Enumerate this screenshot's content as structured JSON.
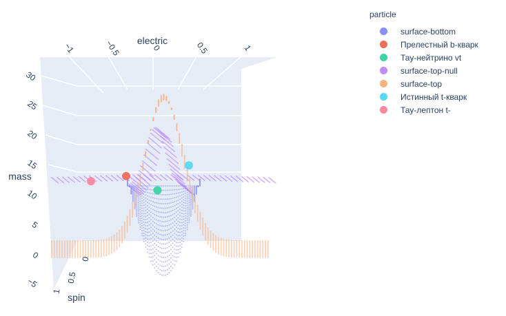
{
  "chart_data": {
    "type": "scatter",
    "mode": "3d",
    "axes": {
      "x": {
        "title": "electric",
        "range": [
          -1,
          1
        ],
        "ticks": [
          "−1",
          "−0.5",
          "0",
          "0.5",
          "1"
        ]
      },
      "y": {
        "title": "spin",
        "range": [
          0,
          1
        ],
        "ticks": [
          "0",
          "0.5",
          "1"
        ]
      },
      "z": {
        "title": "mass",
        "range": [
          -5,
          33
        ],
        "ticks": [
          "−5",
          "0",
          "5",
          "10",
          "15",
          "20",
          "25",
          "30"
        ]
      }
    },
    "legend": {
      "title": "particle",
      "placement": "top-right",
      "items": [
        {
          "name": "surface-bottom",
          "color": "#8690f3"
        },
        {
          "name": "Прелестный b-кварк",
          "color": "#eb6e5b"
        },
        {
          "name": "Тау-нейтрино vt",
          "color": "#3dd3a2"
        },
        {
          "name": "surface-top-null",
          "color": "#bf8cf9"
        },
        {
          "name": "surface-top",
          "color": "#f9b183"
        },
        {
          "name": "Истинный t-кварк",
          "color": "#56daf0"
        },
        {
          "name": "Тау-лептон t-",
          "color": "#f9879f"
        }
      ]
    },
    "points": [
      {
        "series": "Прелестный b-кварк",
        "x": -0.3,
        "y": 0.5,
        "z": 10.5,
        "color": "#eb6e5b"
      },
      {
        "series": "Тау-нейтрино vt",
        "x": 0.05,
        "y": 0.5,
        "z": 6.5,
        "color": "#3dd3a2"
      },
      {
        "series": "Истинный t-кварк",
        "x": 0.4,
        "y": 0.5,
        "z": 13.5,
        "color": "#56daf0"
      },
      {
        "series": "Тау-лептон t-",
        "x": -0.6,
        "y": 0.7,
        "z": 10.2,
        "color": "#f9879f"
      }
    ],
    "surfaces": [
      {
        "series": "surface-top",
        "description_color": "#f9b183"
      },
      {
        "series": "surface-bottom",
        "description_color": "#8690f3"
      },
      {
        "series": "surface-top-null",
        "description_color": "#bf8cf9"
      }
    ],
    "grid": true
  }
}
